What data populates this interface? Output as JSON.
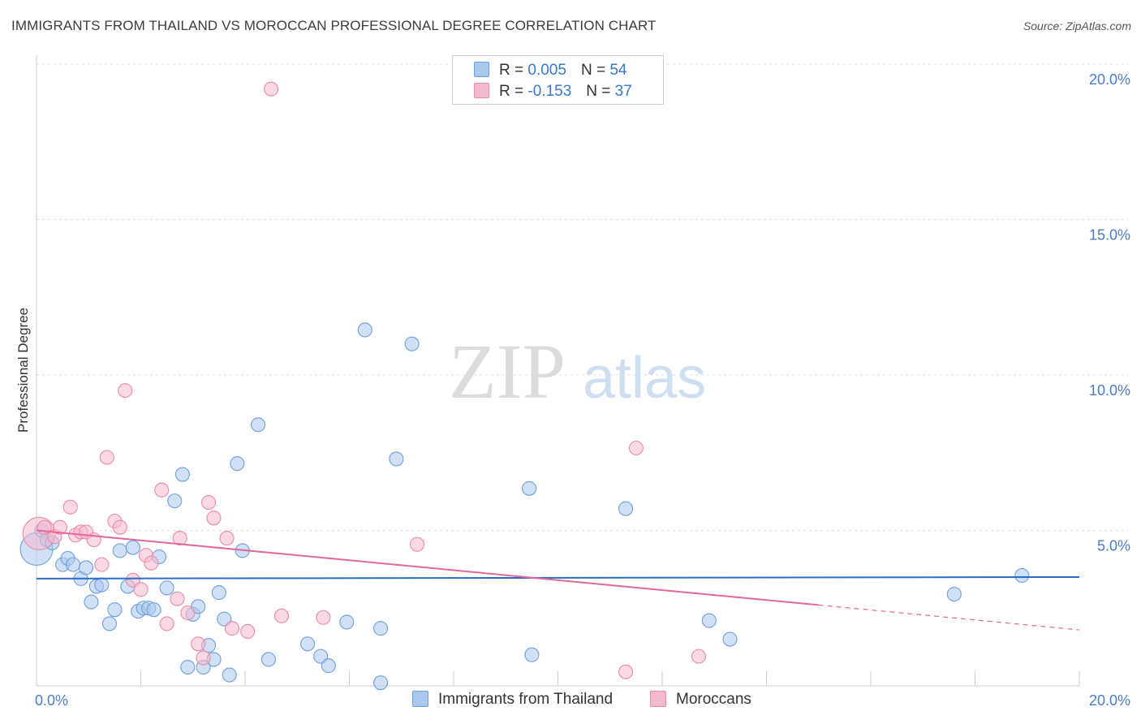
{
  "header": {
    "title": "IMMIGRANTS FROM THAILAND VS MOROCCAN PROFESSIONAL DEGREE CORRELATION CHART",
    "source": "Source: ZipAtlas.com"
  },
  "watermark": {
    "zip": "ZIP",
    "atlas": "atlas"
  },
  "colors": {
    "blue_fill": "#a9c8ee",
    "blue_stroke": "#6f9fd8",
    "blue_line": "#2b6cc9",
    "pink_fill": "#f5b9cd",
    "pink_stroke": "#e98aa9",
    "pink_line": "#e2679a",
    "tick_text": "#4a7cc4",
    "grid": "#dddddd"
  },
  "stats_legend": {
    "rows": [
      {
        "r_label": "R =",
        "r_value": "0.005",
        "n_label": "N =",
        "n_value": "54",
        "color": "#a9c8ee",
        "border": "#6f9fd8"
      },
      {
        "r_label": "R =",
        "r_value": "-0.153",
        "n_label": "N =",
        "n_value": "37",
        "color": "#f5b9cd",
        "border": "#e98aa9"
      }
    ]
  },
  "chart_data": {
    "type": "scatter",
    "title": "IMMIGRANTS FROM THAILAND VS MOROCCAN PROFESSIONAL DEGREE CORRELATION CHART",
    "xlabel": "",
    "ylabel": "Professional Degree",
    "xlim": [
      0,
      20
    ],
    "ylim": [
      0,
      20
    ],
    "x_tick_labels": [
      "0.0%",
      "20.0%"
    ],
    "y_ticks": [
      5,
      10,
      15,
      20
    ],
    "y_tick_labels": [
      "5.0%",
      "10.0%",
      "15.0%",
      "20.0%"
    ],
    "x_minor_ticks": [
      2,
      4,
      6,
      8,
      10,
      12,
      14,
      16,
      18,
      20
    ],
    "grid": true,
    "legend_placement": "top-center",
    "series": [
      {
        "name": "Immigrants from Thailand",
        "color": "#a9c8ee",
        "r": 0.005,
        "n": 54,
        "trend": {
          "x": [
            0,
            20
          ],
          "y": [
            3.45,
            3.5
          ],
          "style": "solid"
        },
        "points": [
          {
            "x": 0.0,
            "y": 4.4,
            "size": "large"
          },
          {
            "x": 0.1,
            "y": 5.0
          },
          {
            "x": 0.2,
            "y": 4.7
          },
          {
            "x": 0.3,
            "y": 4.6
          },
          {
            "x": 0.5,
            "y": 3.9
          },
          {
            "x": 0.6,
            "y": 4.1
          },
          {
            "x": 0.7,
            "y": 3.9
          },
          {
            "x": 0.85,
            "y": 3.45
          },
          {
            "x": 0.95,
            "y": 3.8
          },
          {
            "x": 1.05,
            "y": 2.7
          },
          {
            "x": 1.15,
            "y": 3.2
          },
          {
            "x": 1.25,
            "y": 3.25
          },
          {
            "x": 1.4,
            "y": 2.0
          },
          {
            "x": 1.5,
            "y": 2.45
          },
          {
            "x": 1.6,
            "y": 4.35
          },
          {
            "x": 1.75,
            "y": 3.2
          },
          {
            "x": 1.85,
            "y": 4.45
          },
          {
            "x": 1.95,
            "y": 2.4
          },
          {
            "x": 2.05,
            "y": 2.5
          },
          {
            "x": 2.15,
            "y": 2.5
          },
          {
            "x": 2.25,
            "y": 2.45
          },
          {
            "x": 2.35,
            "y": 4.15
          },
          {
            "x": 2.5,
            "y": 3.15
          },
          {
            "x": 2.65,
            "y": 5.95
          },
          {
            "x": 2.8,
            "y": 6.8
          },
          {
            "x": 2.9,
            "y": 0.6
          },
          {
            "x": 3.0,
            "y": 2.3
          },
          {
            "x": 3.1,
            "y": 2.55
          },
          {
            "x": 3.2,
            "y": 0.6
          },
          {
            "x": 3.3,
            "y": 1.3
          },
          {
            "x": 3.4,
            "y": 0.85
          },
          {
            "x": 3.5,
            "y": 3.0
          },
          {
            "x": 3.6,
            "y": 2.15
          },
          {
            "x": 3.7,
            "y": 0.35
          },
          {
            "x": 3.85,
            "y": 7.15
          },
          {
            "x": 3.95,
            "y": 4.35
          },
          {
            "x": 4.25,
            "y": 8.4
          },
          {
            "x": 4.45,
            "y": 0.85
          },
          {
            "x": 5.2,
            "y": 1.35
          },
          {
            "x": 5.45,
            "y": 0.95
          },
          {
            "x": 5.6,
            "y": 0.65
          },
          {
            "x": 5.95,
            "y": 2.05
          },
          {
            "x": 6.3,
            "y": 11.45
          },
          {
            "x": 6.6,
            "y": 1.85
          },
          {
            "x": 6.6,
            "y": 0.1
          },
          {
            "x": 6.9,
            "y": 7.3
          },
          {
            "x": 7.2,
            "y": 11.0
          },
          {
            "x": 9.45,
            "y": 6.35
          },
          {
            "x": 9.5,
            "y": 1.0
          },
          {
            "x": 11.3,
            "y": 5.7
          },
          {
            "x": 12.9,
            "y": 2.1
          },
          {
            "x": 13.3,
            "y": 1.5
          },
          {
            "x": 17.6,
            "y": 2.95
          },
          {
            "x": 18.9,
            "y": 3.55
          }
        ]
      },
      {
        "name": "Moroccans",
        "color": "#f5b9cd",
        "r": -0.153,
        "n": 37,
        "trend": {
          "x": [
            0,
            15
          ],
          "y": [
            5.0,
            2.6
          ],
          "style": "solid",
          "dashed_extension": {
            "x": [
              15,
              20
            ],
            "y": [
              2.6,
              1.8
            ]
          }
        },
        "points": [
          {
            "x": 0.05,
            "y": 4.9,
            "size": "large"
          },
          {
            "x": 0.15,
            "y": 5.1
          },
          {
            "x": 0.35,
            "y": 4.8
          },
          {
            "x": 0.45,
            "y": 5.1
          },
          {
            "x": 0.65,
            "y": 5.75
          },
          {
            "x": 0.75,
            "y": 4.85
          },
          {
            "x": 0.85,
            "y": 4.95
          },
          {
            "x": 0.95,
            "y": 4.95
          },
          {
            "x": 1.1,
            "y": 4.7
          },
          {
            "x": 1.25,
            "y": 3.9
          },
          {
            "x": 1.35,
            "y": 7.35
          },
          {
            "x": 1.5,
            "y": 5.3
          },
          {
            "x": 1.6,
            "y": 5.1
          },
          {
            "x": 1.7,
            "y": 9.5
          },
          {
            "x": 1.85,
            "y": 3.4
          },
          {
            "x": 2.0,
            "y": 3.1
          },
          {
            "x": 2.1,
            "y": 4.2
          },
          {
            "x": 2.2,
            "y": 3.95
          },
          {
            "x": 2.4,
            "y": 6.3
          },
          {
            "x": 2.5,
            "y": 2.0
          },
          {
            "x": 2.7,
            "y": 2.8
          },
          {
            "x": 2.75,
            "y": 4.75
          },
          {
            "x": 2.9,
            "y": 2.35
          },
          {
            "x": 3.1,
            "y": 1.35
          },
          {
            "x": 3.2,
            "y": 0.9
          },
          {
            "x": 3.3,
            "y": 5.9
          },
          {
            "x": 3.4,
            "y": 5.4
          },
          {
            "x": 3.65,
            "y": 4.75
          },
          {
            "x": 3.75,
            "y": 1.85
          },
          {
            "x": 4.05,
            "y": 1.75
          },
          {
            "x": 4.5,
            "y": 19.2
          },
          {
            "x": 4.7,
            "y": 2.25
          },
          {
            "x": 5.5,
            "y": 2.2
          },
          {
            "x": 7.3,
            "y": 4.55
          },
          {
            "x": 11.3,
            "y": 0.45
          },
          {
            "x": 11.5,
            "y": 7.65
          },
          {
            "x": 12.7,
            "y": 0.95
          }
        ]
      }
    ]
  },
  "bottom_legend": [
    {
      "label": "Immigrants from Thailand",
      "color": "#a9c8ee",
      "border": "#6f9fd8"
    },
    {
      "label": "Moroccans",
      "color": "#f5b9cd",
      "border": "#e98aa9"
    }
  ]
}
